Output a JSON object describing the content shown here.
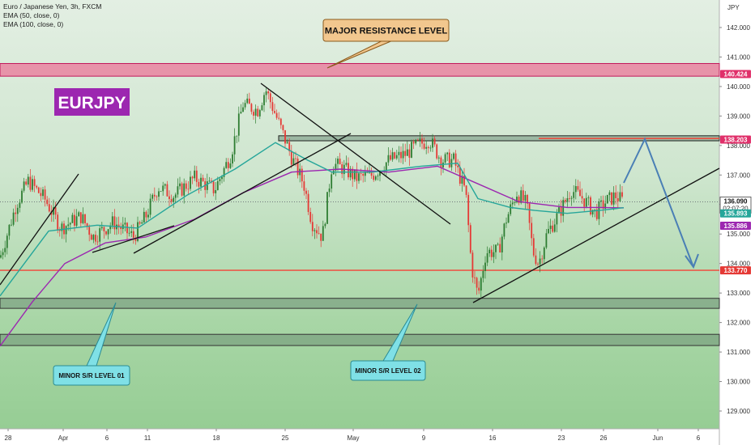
{
  "legend": {
    "symbol": "Euro / Japanese Yen, 3h, FXCM",
    "ema50": "EMA (50, close, 0)",
    "ema100": "EMA (100, close, 0)"
  },
  "currency_label": "JPY",
  "ticker_badge": "EURJPY",
  "callouts": {
    "major": "MAJOR RESISTANCE LEVEL",
    "minor1": "MINOR S/R LEVEL 01",
    "minor2": "MINOR S/R LEVEL 02"
  },
  "price_tags": {
    "resistance": "140.424",
    "level_138": "138.203",
    "last": "136.090",
    "countdown": "02:07:20",
    "ema50": "135.893",
    "ema100": "135.886",
    "support": "133.770"
  },
  "colors": {
    "bull": "#2e7d32",
    "bear": "#e53935",
    "ema50": "#26a69a",
    "ema100": "#9c27b0",
    "red_line": "#f44336",
    "badge": "#9c27b0",
    "projection": "#4a7fb5"
  },
  "chart_data": {
    "type": "candlestick",
    "title": "Euro / Japanese Yen, 3h, FXCM",
    "y_axis": {
      "ticks": [
        129.0,
        130.0,
        131.0,
        132.0,
        133.0,
        134.0,
        135.0,
        136.0,
        137.0,
        138.0,
        139.0,
        140.0,
        141.0,
        142.0
      ],
      "tick_labels": [
        "129.000",
        "130.000",
        "131.000",
        "132.000",
        "133.000",
        "134.000",
        "135.000",
        "136.000",
        "137.000",
        "138.000",
        "139.000",
        "140.000",
        "141.000",
        "142.000"
      ],
      "range": [
        128.4,
        143.6
      ]
    },
    "x_axis": {
      "labels": [
        "28",
        "Apr",
        "6",
        "11",
        "18",
        "25",
        "May",
        "9",
        "16",
        "23",
        "26",
        "Jun",
        "6"
      ]
    },
    "horizontal_levels": [
      {
        "name": "major-resistance-zone",
        "from": 140.35,
        "to": 140.78
      },
      {
        "name": "resistance-138",
        "from": 138.16,
        "to": 138.33
      },
      {
        "name": "support-line",
        "value": 133.77
      },
      {
        "name": "minor-sr-zone-01",
        "from": 132.48,
        "to": 132.82
      },
      {
        "name": "minor-sr-zone-02",
        "from": 131.22,
        "to": 131.6
      }
    ],
    "series_shape": [
      {
        "x": 0,
        "price": 134.2
      },
      {
        "x": 20,
        "price": 136.0
      },
      {
        "x": 35,
        "price": 136.8
      },
      {
        "x": 55,
        "price": 136.2
      },
      {
        "x": 75,
        "price": 135.2
      },
      {
        "x": 100,
        "price": 135.6
      },
      {
        "x": 115,
        "price": 134.9
      },
      {
        "x": 140,
        "price": 135.4
      },
      {
        "x": 165,
        "price": 134.9
      },
      {
        "x": 180,
        "price": 135.6
      },
      {
        "x": 195,
        "price": 136.6
      },
      {
        "x": 215,
        "price": 136.3
      },
      {
        "x": 240,
        "price": 136.9
      },
      {
        "x": 265,
        "price": 136.5
      },
      {
        "x": 285,
        "price": 137.7
      },
      {
        "x": 300,
        "price": 139.4
      },
      {
        "x": 318,
        "price": 139.2
      },
      {
        "x": 328,
        "price": 139.9
      },
      {
        "x": 345,
        "price": 138.7
      },
      {
        "x": 360,
        "price": 137.6
      },
      {
        "x": 375,
        "price": 136.7
      },
      {
        "x": 385,
        "price": 135.4
      },
      {
        "x": 398,
        "price": 134.9
      },
      {
        "x": 410,
        "price": 137.4
      },
      {
        "x": 425,
        "price": 137.2
      },
      {
        "x": 440,
        "price": 136.9
      },
      {
        "x": 460,
        "price": 137.0
      },
      {
        "x": 480,
        "price": 137.5
      },
      {
        "x": 500,
        "price": 137.7
      },
      {
        "x": 515,
        "price": 138.0
      },
      {
        "x": 530,
        "price": 138.2
      },
      {
        "x": 545,
        "price": 137.5
      },
      {
        "x": 560,
        "price": 137.5
      },
      {
        "x": 575,
        "price": 136.4
      },
      {
        "x": 582,
        "price": 133.9
      },
      {
        "x": 590,
        "price": 132.9
      },
      {
        "x": 600,
        "price": 134.4
      },
      {
        "x": 615,
        "price": 134.4
      },
      {
        "x": 625,
        "price": 135.5
      },
      {
        "x": 638,
        "price": 136.4
      },
      {
        "x": 650,
        "price": 136.0
      },
      {
        "x": 658,
        "price": 134.4
      },
      {
        "x": 665,
        "price": 134.0
      },
      {
        "x": 675,
        "price": 135.0
      },
      {
        "x": 690,
        "price": 135.7
      },
      {
        "x": 705,
        "price": 136.5
      },
      {
        "x": 720,
        "price": 136.2
      },
      {
        "x": 735,
        "price": 135.7
      },
      {
        "x": 748,
        "price": 136.1
      },
      {
        "x": 760,
        "price": 136.3
      },
      {
        "x": 770,
        "price": 136.09
      }
    ],
    "ema50_shape": [
      {
        "x": 0,
        "price": 132.9
      },
      {
        "x": 60,
        "price": 135.1
      },
      {
        "x": 120,
        "price": 135.3
      },
      {
        "x": 170,
        "price": 135.2
      },
      {
        "x": 230,
        "price": 136.3
      },
      {
        "x": 290,
        "price": 137.2
      },
      {
        "x": 340,
        "price": 138.1
      },
      {
        "x": 380,
        "price": 137.5
      },
      {
        "x": 410,
        "price": 137.1
      },
      {
        "x": 460,
        "price": 137.1
      },
      {
        "x": 520,
        "price": 137.3
      },
      {
        "x": 565,
        "price": 137.4
      },
      {
        "x": 590,
        "price": 136.2
      },
      {
        "x": 630,
        "price": 135.9
      },
      {
        "x": 660,
        "price": 135.8
      },
      {
        "x": 700,
        "price": 135.7
      },
      {
        "x": 740,
        "price": 135.8
      },
      {
        "x": 770,
        "price": 135.893
      }
    ],
    "ema100_shape": [
      {
        "x": 0,
        "price": 131.2
      },
      {
        "x": 40,
        "price": 132.7
      },
      {
        "x": 80,
        "price": 134.0
      },
      {
        "x": 130,
        "price": 134.7
      },
      {
        "x": 180,
        "price": 134.9
      },
      {
        "x": 240,
        "price": 135.5
      },
      {
        "x": 300,
        "price": 136.4
      },
      {
        "x": 360,
        "price": 137.1
      },
      {
        "x": 420,
        "price": 137.2
      },
      {
        "x": 480,
        "price": 137.1
      },
      {
        "x": 540,
        "price": 137.3
      },
      {
        "x": 590,
        "price": 136.7
      },
      {
        "x": 640,
        "price": 136.1
      },
      {
        "x": 700,
        "price": 135.9
      },
      {
        "x": 740,
        "price": 135.9
      },
      {
        "x": 770,
        "price": 135.886
      }
    ],
    "last_price": 136.09
  }
}
